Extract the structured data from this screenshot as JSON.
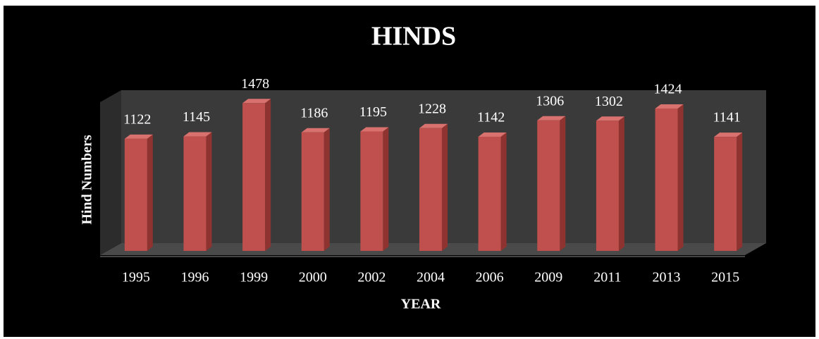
{
  "chart_data": {
    "type": "bar",
    "title": "HINDS",
    "x_label": "YEAR",
    "y_label": "Hind Numbers",
    "categories": [
      "1995",
      "1996",
      "1999",
      "2000",
      "2002",
      "2004",
      "2006",
      "2009",
      "2011",
      "2013",
      "2015"
    ],
    "values": [
      1122,
      1145,
      1478,
      1186,
      1195,
      1228,
      1142,
      1306,
      1302,
      1424,
      1141
    ],
    "color": "#c0504d",
    "ylim": [
      0,
      1600
    ]
  }
}
